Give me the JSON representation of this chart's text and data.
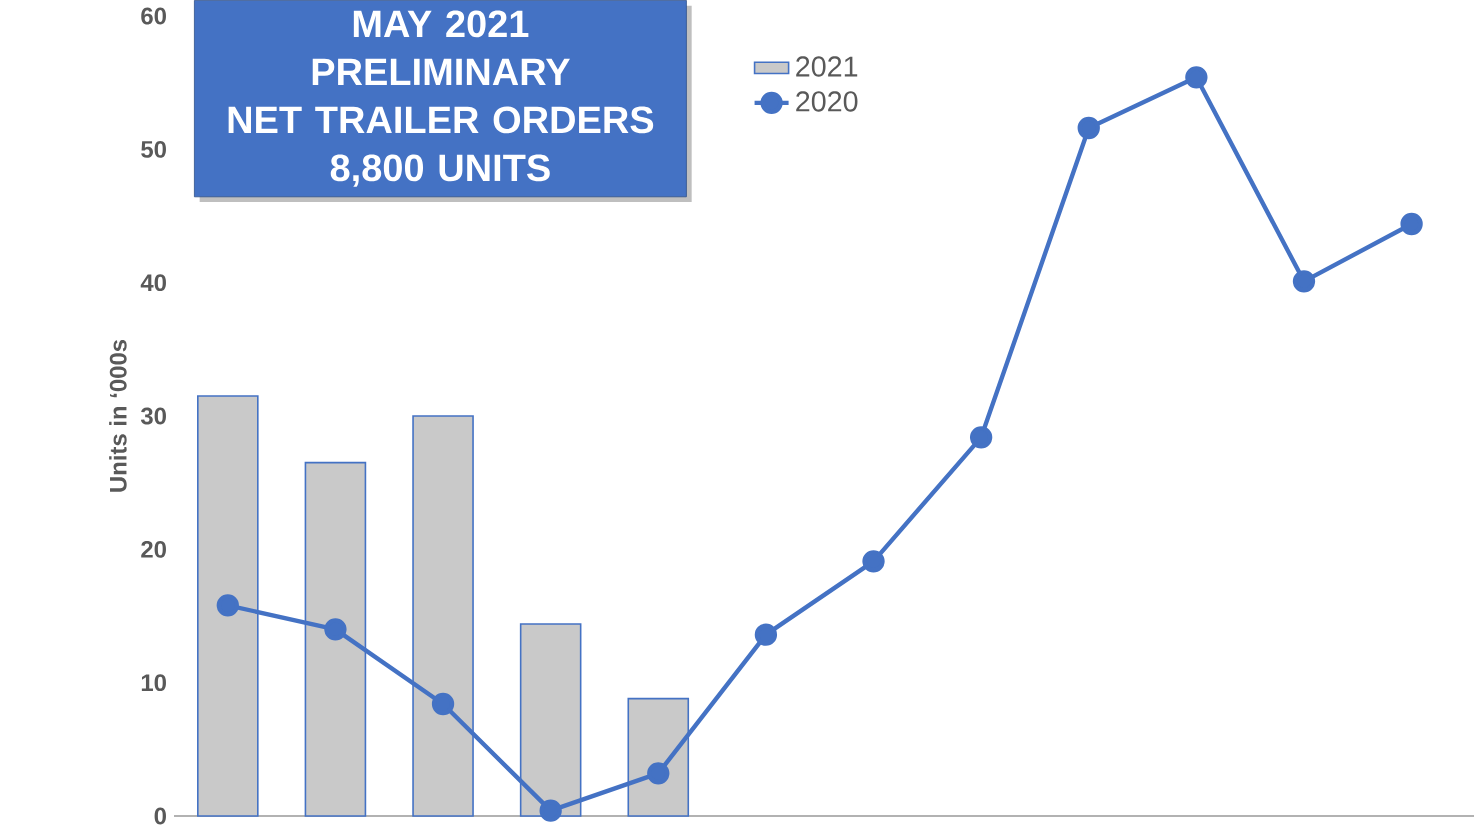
{
  "chart_data": {
    "type": "bar",
    "title": "MAY 2021",
    "subtitle": "PRELIMINARY",
    "annotations": [
      "NET TRAILER ORDERS",
      "8,800 UNITS"
    ],
    "ylabel": "Units in ‘000s",
    "categories": [
      null,
      null,
      null,
      null,
      null,
      null,
      null,
      null,
      null,
      null,
      null,
      null
    ],
    "series": [
      {
        "name": "2021",
        "color": "#c9c9c9",
        "values": [
          31.5,
          26.5,
          30.0,
          14.4,
          8.8,
          null,
          null,
          null,
          null,
          null,
          null,
          null
        ]
      },
      {
        "name": "2020",
        "type": "line",
        "color": "#4472c4",
        "marker": "circle",
        "values": [
          15.8,
          14.0,
          8.4,
          0.4,
          3.2,
          13.6,
          19.1,
          28.4,
          51.6,
          55.4,
          40.1,
          44.4
        ]
      }
    ],
    "ylim": [
      0,
      60
    ],
    "yticks": [
      0,
      10,
      20,
      30,
      40,
      50,
      60
    ],
    "tick_labels": "y",
    "legend": "top"
  }
}
